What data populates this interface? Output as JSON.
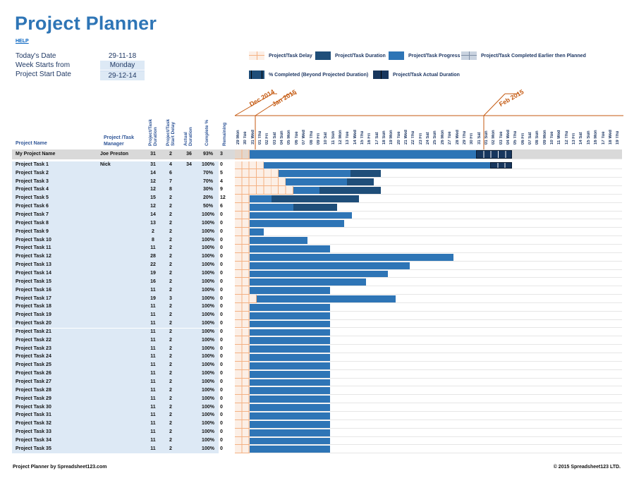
{
  "header": {
    "title": "Project Planner",
    "help_link": "HELP"
  },
  "info": {
    "todays_date_label": "Today's Date",
    "todays_date": "29-11-18",
    "week_starts_label": "Week Starts from",
    "week_starts": "Monday",
    "start_date_label": "Project Start Date",
    "start_date": "29-12-14"
  },
  "legend": [
    {
      "label": "Project/Task Delay",
      "icon": "delay-swatch"
    },
    {
      "label": "Project/Task Duration",
      "icon": "duration-swatch"
    },
    {
      "label": "Project/Task Progress",
      "icon": "progress-swatch"
    },
    {
      "label": "Project/Task Completed Earlier then Planned",
      "icon": "earlier-swatch"
    },
    {
      "label": "% Completed (Beyond Projected Duration)",
      "icon": "beyond-swatch"
    },
    {
      "label": "Project/Task Actual Duration",
      "icon": "actual-swatch"
    }
  ],
  "colors": {
    "progress": "#2e75b6",
    "duration": "#1f4e79",
    "actual": "#17365d",
    "delay": "#fcefe6",
    "delay_grid": "#f4b183",
    "accent": "#c55a11",
    "label_bg": "#dde9f5",
    "project_row_bg": "#d9d9d9"
  },
  "columns": {
    "name": "Project Name",
    "manager": "Project /Task Manager",
    "duration": "Project/Task Duration",
    "delay": "Project/Task Start Delay",
    "actual": "Actual Duration",
    "complete": "Complete %",
    "remaining": "Remaining"
  },
  "months": [
    "Dec 2014",
    "Jan 2015",
    "Feb 2015"
  ],
  "days": [
    "29 Mon",
    "30 Tue",
    "31 Wed",
    "01 Thu",
    "02 Fri",
    "03 Sat",
    "04 Sun",
    "05 Mon",
    "06 Tue",
    "07 Wed",
    "08 Thu",
    "09 Fri",
    "10 Sat",
    "11 Sun",
    "12 Mon",
    "13 Tue",
    "14 Wed",
    "15 Thu",
    "16 Fri",
    "17 Sat",
    "18 Sun",
    "19 Mon",
    "20 Tue",
    "21 Wed",
    "22 Thu",
    "23 Fri",
    "24 Sat",
    "25 Sun",
    "26 Mon",
    "27 Tue",
    "28 Wed",
    "29 Thu",
    "30 Fri",
    "31 Sat",
    "01 Sun",
    "02 Mon",
    "03 Tue",
    "04 Wed",
    "05 Thu",
    "06 Fri",
    "07 Sat",
    "08 Sun",
    "09 Mon",
    "10 Tue",
    "11 Wed",
    "12 Thu",
    "13 Fri",
    "14 Sat",
    "15 Sun",
    "16 Mon",
    "17 Tue",
    "18 Wed",
    "19 Thu"
  ],
  "project": {
    "name": "My Project Name",
    "manager": "Joe Preston",
    "duration": "31",
    "delay": "2",
    "actual": "36",
    "complete": "93%",
    "remaining": "3"
  },
  "tasks": [
    {
      "name": "Project Task 1",
      "manager": "Nick",
      "duration": "31",
      "delay": "4",
      "actual": "34",
      "complete": "100%",
      "remaining": "0"
    },
    {
      "name": "Project Task 2",
      "manager": "",
      "duration": "14",
      "delay": "6",
      "actual": "",
      "complete": "70%",
      "remaining": "5"
    },
    {
      "name": "Project Task 3",
      "manager": "",
      "duration": "12",
      "delay": "7",
      "actual": "",
      "complete": "70%",
      "remaining": "4"
    },
    {
      "name": "Project Task 4",
      "manager": "",
      "duration": "12",
      "delay": "8",
      "actual": "",
      "complete": "30%",
      "remaining": "9"
    },
    {
      "name": "Project Task 5",
      "manager": "",
      "duration": "15",
      "delay": "2",
      "actual": "",
      "complete": "20%",
      "remaining": "12"
    },
    {
      "name": "Project Task 6",
      "manager": "",
      "duration": "12",
      "delay": "2",
      "actual": "",
      "complete": "50%",
      "remaining": "6"
    },
    {
      "name": "Project Task 7",
      "manager": "",
      "duration": "14",
      "delay": "2",
      "actual": "",
      "complete": "100%",
      "remaining": "0"
    },
    {
      "name": "Project Task 8",
      "manager": "",
      "duration": "13",
      "delay": "2",
      "actual": "",
      "complete": "100%",
      "remaining": "0"
    },
    {
      "name": "Project Task 9",
      "manager": "",
      "duration": "2",
      "delay": "2",
      "actual": "",
      "complete": "100%",
      "remaining": "0"
    },
    {
      "name": "Project Task 10",
      "manager": "",
      "duration": "8",
      "delay": "2",
      "actual": "",
      "complete": "100%",
      "remaining": "0"
    },
    {
      "name": "Project Task 11",
      "manager": "",
      "duration": "11",
      "delay": "2",
      "actual": "",
      "complete": "100%",
      "remaining": "0"
    },
    {
      "name": "Project Task 12",
      "manager": "",
      "duration": "28",
      "delay": "2",
      "actual": "",
      "complete": "100%",
      "remaining": "0"
    },
    {
      "name": "Project Task 13",
      "manager": "",
      "duration": "22",
      "delay": "2",
      "actual": "",
      "complete": "100%",
      "remaining": "0"
    },
    {
      "name": "Project Task 14",
      "manager": "",
      "duration": "19",
      "delay": "2",
      "actual": "",
      "complete": "100%",
      "remaining": "0"
    },
    {
      "name": "Project Task 15",
      "manager": "",
      "duration": "16",
      "delay": "2",
      "actual": "",
      "complete": "100%",
      "remaining": "0"
    },
    {
      "name": "Project Task 16",
      "manager": "",
      "duration": "11",
      "delay": "2",
      "actual": "",
      "complete": "100%",
      "remaining": "0"
    },
    {
      "name": "Project Task 17",
      "manager": "",
      "duration": "19",
      "delay": "3",
      "actual": "",
      "complete": "100%",
      "remaining": "0"
    },
    {
      "name": "Project Task 18",
      "manager": "",
      "duration": "11",
      "delay": "2",
      "actual": "",
      "complete": "100%",
      "remaining": "0"
    },
    {
      "name": "Project Task 19",
      "manager": "",
      "duration": "11",
      "delay": "2",
      "actual": "",
      "complete": "100%",
      "remaining": "0"
    },
    {
      "name": "Project Task 20",
      "manager": "",
      "duration": "11",
      "delay": "2",
      "actual": "",
      "complete": "100%",
      "remaining": "0"
    },
    {
      "name": "Project Task 21",
      "manager": "",
      "duration": "11",
      "delay": "2",
      "actual": "",
      "complete": "100%",
      "remaining": "0"
    },
    {
      "name": "Project Task 22",
      "manager": "",
      "duration": "11",
      "delay": "2",
      "actual": "",
      "complete": "100%",
      "remaining": "0"
    },
    {
      "name": "Project Task 23",
      "manager": "",
      "duration": "11",
      "delay": "2",
      "actual": "",
      "complete": "100%",
      "remaining": "0"
    },
    {
      "name": "Project Task 24",
      "manager": "",
      "duration": "11",
      "delay": "2",
      "actual": "",
      "complete": "100%",
      "remaining": "0"
    },
    {
      "name": "Project Task 25",
      "manager": "",
      "duration": "11",
      "delay": "2",
      "actual": "",
      "complete": "100%",
      "remaining": "0"
    },
    {
      "name": "Project Task 26",
      "manager": "",
      "duration": "11",
      "delay": "2",
      "actual": "",
      "complete": "100%",
      "remaining": "0"
    },
    {
      "name": "Project Task 27",
      "manager": "",
      "duration": "11",
      "delay": "2",
      "actual": "",
      "complete": "100%",
      "remaining": "0"
    },
    {
      "name": "Project Task 28",
      "manager": "",
      "duration": "11",
      "delay": "2",
      "actual": "",
      "complete": "100%",
      "remaining": "0"
    },
    {
      "name": "Project Task 29",
      "manager": "",
      "duration": "11",
      "delay": "2",
      "actual": "",
      "complete": "100%",
      "remaining": "0"
    },
    {
      "name": "Project Task 30",
      "manager": "",
      "duration": "11",
      "delay": "2",
      "actual": "",
      "complete": "100%",
      "remaining": "0"
    },
    {
      "name": "Project Task 31",
      "manager": "",
      "duration": "11",
      "delay": "2",
      "actual": "",
      "complete": "100%",
      "remaining": "0"
    },
    {
      "name": "Project Task 32",
      "manager": "",
      "duration": "11",
      "delay": "2",
      "actual": "",
      "complete": "100%",
      "remaining": "0"
    },
    {
      "name": "Project Task 33",
      "manager": "",
      "duration": "11",
      "delay": "2",
      "actual": "",
      "complete": "100%",
      "remaining": "0"
    },
    {
      "name": "Project Task 34",
      "manager": "",
      "duration": "11",
      "delay": "2",
      "actual": "",
      "complete": "100%",
      "remaining": "0"
    },
    {
      "name": "Project Task 35",
      "manager": "",
      "duration": "11",
      "delay": "2",
      "actual": "",
      "complete": "100%",
      "remaining": "0"
    }
  ],
  "footer": {
    "left": "Project Planner by Spreadsheet123.com",
    "right": "© 2015 Spreadsheet123 LTD."
  }
}
